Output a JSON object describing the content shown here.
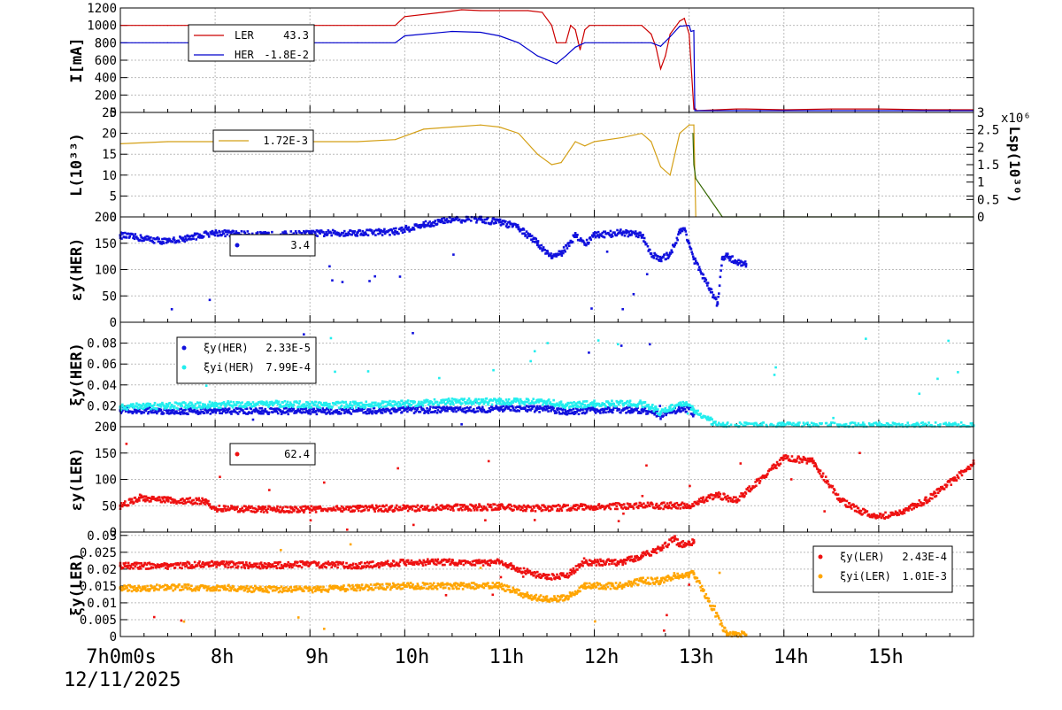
{
  "x_axis": {
    "start_label": "7h0m0s",
    "date": "12/11/2025",
    "ticks": [
      {
        "t": 8,
        "label": "8h"
      },
      {
        "t": 9,
        "label": "9h"
      },
      {
        "t": 10,
        "label": "10h"
      },
      {
        "t": 11,
        "label": "11h"
      },
      {
        "t": 12,
        "label": "12h"
      },
      {
        "t": 13,
        "label": "13h"
      },
      {
        "t": 14,
        "label": "14h"
      },
      {
        "t": 15,
        "label": "15h"
      }
    ],
    "range_hours": [
      7.0,
      16.0
    ]
  },
  "colors": {
    "ler": "#cc0000",
    "her": "#0000cc",
    "lum": "#d4a017",
    "lsp": "#336600",
    "red_pts": "#ee1111",
    "blue_pts": "#1111dd",
    "cyan_pts": "#22eeee",
    "orange_pts": "#ffa500"
  },
  "chart_data": [
    {
      "id": "current",
      "type": "line",
      "ylabel": "I[mA]",
      "ylim": [
        0,
        1200
      ],
      "yticks": [
        "0",
        "200",
        "400",
        "600",
        "800",
        "1000",
        "1200"
      ],
      "legend": [
        {
          "label": "LER",
          "value": "43.3",
          "color": "#cc0000"
        },
        {
          "label": "HER",
          "value": "-1.8E-2",
          "color": "#0000cc"
        }
      ],
      "series": [
        {
          "name": "LER",
          "x": [
            7.0,
            7.5,
            8.0,
            8.5,
            9.0,
            9.5,
            9.9,
            10.0,
            10.4,
            10.6,
            10.8,
            11.0,
            11.3,
            11.45,
            11.55,
            11.6,
            11.7,
            11.75,
            11.8,
            11.85,
            11.9,
            11.95,
            12.0,
            12.5,
            12.6,
            12.65,
            12.7,
            12.75,
            12.8,
            12.9,
            12.95,
            13.0,
            13.05,
            13.07,
            13.08,
            13.3,
            13.5,
            13.6,
            14.0,
            14.5,
            15.0,
            15.5,
            16.0
          ],
          "y": [
            1000,
            1000,
            1000,
            1000,
            1000,
            1000,
            1000,
            1100,
            1150,
            1180,
            1170,
            1170,
            1170,
            1150,
            1000,
            800,
            800,
            1000,
            950,
            720,
            950,
            1000,
            1000,
            1000,
            900,
            750,
            500,
            650,
            900,
            1050,
            1080,
            900,
            40,
            40,
            20,
            30,
            40,
            40,
            30,
            40,
            40,
            30,
            30
          ]
        },
        {
          "name": "HER",
          "x": [
            7.0,
            7.5,
            8.0,
            8.5,
            9.0,
            9.5,
            9.9,
            10.0,
            10.5,
            10.8,
            11.0,
            11.2,
            11.4,
            11.6,
            11.7,
            11.8,
            11.9,
            12.0,
            12.5,
            12.6,
            12.7,
            12.8,
            12.9,
            13.0,
            13.02,
            13.05,
            13.06,
            13.3,
            13.5,
            14.0,
            15.0,
            16.0
          ],
          "y": [
            800,
            800,
            800,
            800,
            800,
            800,
            800,
            880,
            930,
            920,
            880,
            800,
            650,
            560,
            650,
            750,
            800,
            800,
            800,
            800,
            760,
            870,
            990,
            1000,
            930,
            940,
            20,
            20,
            20,
            20,
            20,
            20
          ]
        }
      ]
    },
    {
      "id": "luminosity",
      "type": "line",
      "ylabel": "L(10³³)",
      "ylim": [
        0,
        25
      ],
      "yticks": [
        "0",
        "5",
        "10",
        "15",
        "20",
        "25"
      ],
      "y2label": "Lsp(10³⁰)",
      "y2lim": [
        0,
        3
      ],
      "y2ticks": [
        "0",
        "0.5",
        "1",
        "1.5",
        "2",
        "2.5",
        "3"
      ],
      "y2mult": "x10⁶",
      "legend": [
        {
          "label": "",
          "value": "1.72E-3",
          "color": "#d4a017"
        }
      ],
      "series": [
        {
          "name": "L",
          "x": [
            7.0,
            7.5,
            8.0,
            8.5,
            9.0,
            9.5,
            9.9,
            10.2,
            10.5,
            10.8,
            11.0,
            11.2,
            11.4,
            11.55,
            11.65,
            11.8,
            11.9,
            12.0,
            12.3,
            12.5,
            12.6,
            12.7,
            12.8,
            12.9,
            13.0,
            13.05,
            13.07
          ],
          "y": [
            17.5,
            18,
            18,
            18,
            18,
            18,
            18.5,
            21,
            21.5,
            22,
            21.5,
            20,
            15,
            12.5,
            13,
            18,
            17,
            18,
            19,
            20,
            18,
            12,
            10,
            20,
            22,
            22,
            0
          ]
        },
        {
          "name": "Lsp",
          "x": [
            13.04,
            13.05,
            13.07,
            13.3,
            13.35,
            16.0
          ],
          "y": [
            2.4,
            1.5,
            1.1,
            0.2,
            0.0,
            0.0
          ]
        }
      ]
    },
    {
      "id": "emit_her",
      "type": "scatter",
      "ylabel": "εy(HER)",
      "ylim": [
        0,
        200
      ],
      "yticks": [
        "0",
        "50",
        "100",
        "150",
        "200"
      ],
      "legend": [
        {
          "label": "",
          "value": "3.4",
          "color": "#1111dd"
        }
      ],
      "series": [
        {
          "name": "εy(HER)",
          "x": [
            7.0,
            7.5,
            8.0,
            8.5,
            9.0,
            9.5,
            9.9,
            10.2,
            10.5,
            10.8,
            11.0,
            11.2,
            11.4,
            11.55,
            11.65,
            11.8,
            11.9,
            12.0,
            12.3,
            12.5,
            12.6,
            12.7,
            12.8,
            12.9,
            12.95,
            13.0,
            13.05,
            13.3,
            13.35,
            13.4,
            13.5,
            13.6
          ],
          "y": [
            165,
            153,
            170,
            165,
            168,
            170,
            172,
            185,
            195,
            195,
            190,
            180,
            150,
            125,
            130,
            165,
            148,
            165,
            170,
            165,
            130,
            118,
            130,
            170,
            178,
            150,
            120,
            35,
            120,
            125,
            115,
            110
          ]
        }
      ]
    },
    {
      "id": "tune_her",
      "type": "scatter",
      "ylabel": "ξy(HER)",
      "ylim": [
        0,
        0.1
      ],
      "yticks": [
        "0",
        "0.02",
        "0.04",
        "0.06",
        "0.08"
      ],
      "legend": [
        {
          "label": "ξy(HER)",
          "value": "2.33E-5",
          "color": "#1111dd"
        },
        {
          "label": "ξyi(HER)",
          "value": "7.99E-4",
          "color": "#22eeee"
        }
      ],
      "series": [
        {
          "name": "ξy(HER)",
          "x": [
            7.0,
            7.5,
            8.0,
            8.5,
            9.0,
            9.5,
            10.0,
            10.5,
            11.0,
            11.5,
            11.7,
            12.0,
            12.5,
            12.65,
            12.7,
            12.8,
            12.9,
            13.0,
            13.05
          ],
          "y": [
            0.016,
            0.015,
            0.015,
            0.015,
            0.015,
            0.015,
            0.016,
            0.016,
            0.017,
            0.017,
            0.014,
            0.016,
            0.016,
            0.013,
            0.01,
            0.014,
            0.017,
            0.017,
            0.012
          ]
        },
        {
          "name": "ξyi(HER)",
          "x": [
            7.0,
            7.5,
            8.0,
            8.5,
            9.0,
            9.5,
            10.0,
            10.5,
            11.0,
            11.5,
            11.7,
            12.0,
            12.5,
            12.65,
            12.7,
            12.8,
            12.9,
            13.0,
            13.05,
            13.3,
            13.5,
            14.0,
            15.0,
            16.0
          ],
          "y": [
            0.019,
            0.02,
            0.021,
            0.022,
            0.021,
            0.021,
            0.022,
            0.024,
            0.024,
            0.024,
            0.02,
            0.022,
            0.022,
            0.017,
            0.013,
            0.018,
            0.021,
            0.021,
            0.015,
            0.001,
            0.001,
            0.001,
            0.001,
            0.001
          ]
        }
      ]
    },
    {
      "id": "emit_ler",
      "type": "scatter",
      "ylabel": "εy(LER)",
      "ylim": [
        0,
        200
      ],
      "yticks": [
        "0",
        "50",
        "100",
        "150",
        "200"
      ],
      "legend": [
        {
          "label": "",
          "value": "62.4",
          "color": "#ee1111"
        }
      ],
      "series": [
        {
          "name": "εy(LER)",
          "x": [
            7.0,
            7.2,
            7.5,
            7.9,
            8.0,
            8.5,
            9.0,
            9.5,
            10.0,
            10.5,
            11.0,
            11.5,
            12.0,
            12.5,
            13.0,
            13.3,
            13.5,
            14.0,
            14.3,
            14.6,
            14.8,
            15.0,
            15.2,
            15.5,
            15.8,
            16.0
          ],
          "y": [
            50,
            65,
            60,
            58,
            45,
            43,
            43,
            45,
            45,
            47,
            47,
            45,
            48,
            50,
            50,
            70,
            60,
            140,
            135,
            60,
            40,
            30,
            35,
            60,
            100,
            130
          ]
        }
      ]
    },
    {
      "id": "tune_ler",
      "type": "scatter",
      "ylabel": "ξy(LER)",
      "ylim": [
        0,
        0.031
      ],
      "yticks": [
        "0",
        "0.005",
        "0.01",
        "0.015",
        "0.02",
        "0.025",
        "0.03"
      ],
      "legend": [
        {
          "label": "ξy(LER)",
          "value": "2.43E-4",
          "color": "#ee1111"
        },
        {
          "label": "ξyi(LER)",
          "value": "1.01E-3",
          "color": "#ffa500"
        }
      ],
      "series": [
        {
          "name": "ξy(LER)",
          "x": [
            7.0,
            7.5,
            8.0,
            8.5,
            9.0,
            9.5,
            10.0,
            10.5,
            11.0,
            11.3,
            11.5,
            11.7,
            11.9,
            12.0,
            12.3,
            12.5,
            12.7,
            12.85,
            12.9,
            13.0,
            13.05
          ],
          "y": [
            0.021,
            0.021,
            0.0215,
            0.021,
            0.0215,
            0.021,
            0.022,
            0.022,
            0.022,
            0.019,
            0.0175,
            0.018,
            0.022,
            0.022,
            0.022,
            0.024,
            0.026,
            0.029,
            0.027,
            0.028,
            0.028
          ]
        },
        {
          "name": "ξyi(LER)",
          "x": [
            7.0,
            7.5,
            8.0,
            8.5,
            9.0,
            9.5,
            10.0,
            10.5,
            11.0,
            11.3,
            11.5,
            11.7,
            11.9,
            12.0,
            12.3,
            12.5,
            12.7,
            12.85,
            13.0,
            13.05,
            13.4,
            13.5,
            13.6
          ],
          "y": [
            0.0143,
            0.0145,
            0.0145,
            0.014,
            0.014,
            0.0145,
            0.015,
            0.015,
            0.015,
            0.012,
            0.011,
            0.0115,
            0.015,
            0.015,
            0.015,
            0.0165,
            0.0165,
            0.018,
            0.0185,
            0.0185,
            0.0005,
            0.0008,
            0.0005
          ]
        }
      ]
    }
  ]
}
